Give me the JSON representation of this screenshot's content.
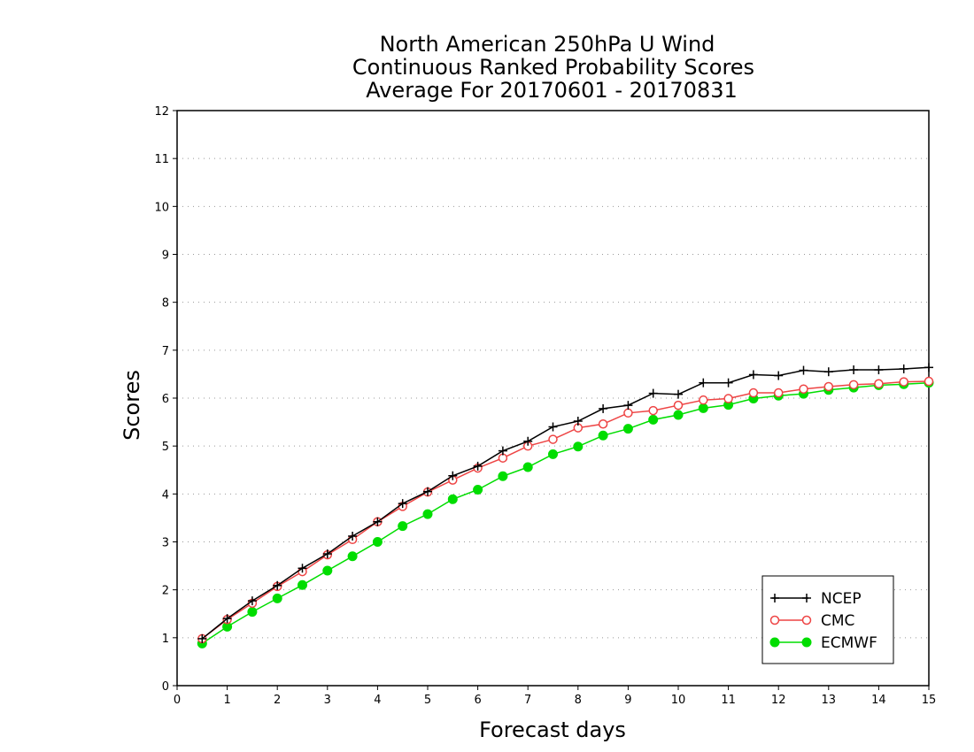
{
  "chart_data": {
    "type": "line",
    "title": [
      "North American 250hPa U Wind",
      "Continuous Ranked Probability Scores",
      "Average For 20170601 - 20170831"
    ],
    "xlabel": "Forecast days",
    "ylabel": "Scores",
    "xlim": [
      0,
      15
    ],
    "ylim": [
      0,
      12
    ],
    "xticks": [
      0,
      1,
      2,
      3,
      4,
      5,
      6,
      7,
      8,
      9,
      10,
      11,
      12,
      13,
      14,
      15
    ],
    "yticks": [
      0,
      1,
      2,
      3,
      4,
      5,
      6,
      7,
      8,
      9,
      10,
      11,
      12
    ],
    "grid": "horizontal dotted",
    "legend_position": "bottom-right",
    "x": [
      0.5,
      1,
      1.5,
      2,
      2.5,
      3,
      3.5,
      4,
      4.5,
      5,
      5.5,
      6,
      6.5,
      7,
      7.5,
      8,
      8.5,
      9,
      9.5,
      10,
      10.5,
      11,
      11.5,
      12,
      12.5,
      13,
      13.5,
      14,
      14.5,
      15
    ],
    "series": [
      {
        "name": "NCEP",
        "color": "#000000",
        "marker": "plus",
        "values": [
          0.98,
          1.4,
          1.77,
          2.09,
          2.45,
          2.75,
          3.12,
          3.42,
          3.8,
          4.05,
          4.38,
          4.58,
          4.9,
          5.1,
          5.4,
          5.52,
          5.78,
          5.85,
          6.1,
          6.08,
          6.32,
          6.32,
          6.49,
          6.47,
          6.58,
          6.55,
          6.59,
          6.59,
          6.61,
          6.64
        ]
      },
      {
        "name": "CMC",
        "color": "#ee4444",
        "marker": "open-circle",
        "values": [
          0.98,
          1.38,
          1.72,
          2.07,
          2.38,
          2.73,
          3.05,
          3.42,
          3.74,
          4.04,
          4.29,
          4.54,
          4.75,
          5.0,
          5.14,
          5.38,
          5.46,
          5.69,
          5.74,
          5.85,
          5.96,
          5.99,
          6.11,
          6.11,
          6.19,
          6.24,
          6.28,
          6.3,
          6.34,
          6.35
        ]
      },
      {
        "name": "ECMWF",
        "color": "#00dd00",
        "marker": "filled-circle",
        "values": [
          0.88,
          1.23,
          1.54,
          1.82,
          2.1,
          2.4,
          2.7,
          3.0,
          3.33,
          3.58,
          3.89,
          4.09,
          4.37,
          4.56,
          4.83,
          4.99,
          5.22,
          5.36,
          5.55,
          5.65,
          5.79,
          5.86,
          5.99,
          6.05,
          6.09,
          6.17,
          6.22,
          6.27,
          6.29,
          6.32
        ]
      }
    ]
  }
}
